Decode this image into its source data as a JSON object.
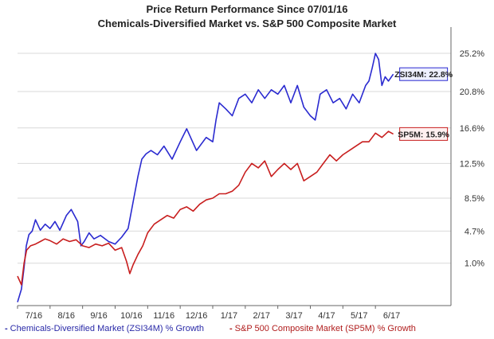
{
  "header": {
    "title": "Price Return Performance Since 07/01/16",
    "subtitle": "Chemicals-Diversified Market   vs.  S&P 500 Composite Market"
  },
  "legend": {
    "item1": "Chemicals-Diversified Market (ZSI34M) % Growth",
    "item2": "S&P 500 Composite Market (SP5M) % Growth",
    "dash": "-"
  },
  "colors": {
    "series1": "#2a2ad0",
    "series2": "#c81e1e",
    "grid": "#d9d9d9",
    "axis": "#666666"
  },
  "chart_data": {
    "type": "line",
    "title": "Price Return Performance Since 07/01/16",
    "subtitle": "Chemicals-Diversified Market   vs.  S&P 500 Composite Market",
    "xlabel": "",
    "ylabel": "",
    "x_ticks": [
      "7/16",
      "8/16",
      "9/16",
      "10/16",
      "11/16",
      "12/16",
      "1/17",
      "2/17",
      "3/17",
      "4/17",
      "5/17",
      "6/17"
    ],
    "y_ticks": [
      "1.0%",
      "4.7%",
      "8.5%",
      "12.5%",
      "16.6%",
      "20.8%",
      "25.2%"
    ],
    "y_tick_values": [
      1.0,
      4.7,
      8.5,
      12.5,
      16.6,
      20.8,
      25.2
    ],
    "xlim": [
      0,
      12
    ],
    "ylim": [
      -3.8,
      27.5
    ],
    "grid": "horizontal",
    "legend_position": "bottom",
    "series": [
      {
        "name": "Chemicals-Diversified Market (ZSI34M) % Growth",
        "label": "ZSI34M: 22.8%",
        "x": [
          0.0,
          0.12,
          0.2,
          0.27,
          0.35,
          0.45,
          0.55,
          0.7,
          0.85,
          1.0,
          1.15,
          1.3,
          1.5,
          1.65,
          1.85,
          1.95,
          2.05,
          2.2,
          2.35,
          2.55,
          2.8,
          3.0,
          3.2,
          3.4,
          3.6,
          3.7,
          3.82,
          3.95,
          4.1,
          4.3,
          4.5,
          4.75,
          5.0,
          5.2,
          5.5,
          5.8,
          6.0,
          6.1,
          6.2,
          6.4,
          6.6,
          6.8,
          7.0,
          7.2,
          7.4,
          7.6,
          7.8,
          8.0,
          8.2,
          8.4,
          8.6,
          8.8,
          9.0,
          9.15,
          9.3,
          9.5,
          9.7,
          9.9,
          10.1,
          10.3,
          10.5,
          10.7,
          10.8,
          10.9,
          11.0,
          11.1,
          11.2,
          11.3,
          11.4,
          11.55
        ],
        "y": [
          -3.5,
          -2.0,
          0.5,
          3.0,
          4.3,
          4.7,
          6.0,
          4.8,
          5.5,
          5.0,
          5.8,
          4.8,
          6.5,
          7.2,
          5.8,
          3.0,
          3.5,
          4.5,
          3.8,
          4.2,
          3.5,
          3.2,
          4.0,
          5.0,
          9.0,
          11.0,
          13.0,
          13.6,
          14.0,
          13.5,
          14.5,
          13.0,
          15.0,
          16.5,
          14.0,
          15.5,
          15.0,
          17.5,
          19.5,
          18.8,
          18.0,
          20.0,
          20.5,
          19.5,
          21.0,
          20.0,
          21.0,
          20.5,
          21.5,
          19.5,
          21.5,
          19.0,
          18.0,
          17.5,
          20.5,
          21.0,
          19.5,
          20.0,
          18.8,
          20.5,
          19.5,
          21.5,
          22.0,
          23.5,
          25.2,
          24.5,
          21.5,
          22.5,
          22.0,
          22.8
        ]
      },
      {
        "name": "S&P 500 Composite Market (SP5M) % Growth",
        "label": "SP5M: 15.9%",
        "x": [
          0.0,
          0.12,
          0.2,
          0.28,
          0.4,
          0.55,
          0.7,
          0.85,
          1.0,
          1.2,
          1.4,
          1.6,
          1.8,
          2.0,
          2.2,
          2.4,
          2.6,
          2.8,
          3.0,
          3.2,
          3.35,
          3.45,
          3.55,
          3.7,
          3.85,
          4.0,
          4.2,
          4.4,
          4.6,
          4.8,
          5.0,
          5.2,
          5.4,
          5.6,
          5.8,
          6.0,
          6.2,
          6.4,
          6.6,
          6.8,
          7.0,
          7.2,
          7.4,
          7.6,
          7.8,
          8.0,
          8.2,
          8.4,
          8.6,
          8.8,
          9.0,
          9.2,
          9.4,
          9.6,
          9.8,
          10.0,
          10.2,
          10.4,
          10.6,
          10.8,
          11.0,
          11.2,
          11.4,
          11.55
        ],
        "y": [
          -0.5,
          -1.5,
          1.0,
          2.5,
          3.0,
          3.2,
          3.5,
          3.8,
          3.6,
          3.2,
          3.8,
          3.5,
          3.7,
          3.0,
          2.8,
          3.2,
          3.0,
          3.3,
          2.5,
          2.8,
          1.2,
          -0.2,
          0.8,
          2.0,
          3.0,
          4.5,
          5.5,
          6.0,
          6.5,
          6.2,
          7.2,
          7.5,
          7.0,
          7.8,
          8.3,
          8.5,
          9.0,
          9.0,
          9.3,
          10.0,
          11.5,
          12.5,
          12.0,
          12.8,
          11.0,
          11.8,
          12.5,
          11.8,
          12.5,
          10.5,
          11.0,
          11.5,
          12.5,
          13.5,
          12.8,
          13.5,
          14.0,
          14.5,
          15.0,
          15.0,
          16.0,
          15.5,
          16.2,
          15.9
        ]
      }
    ]
  }
}
